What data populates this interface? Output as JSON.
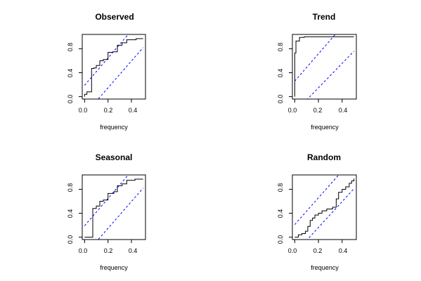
{
  "chart_data": [
    {
      "type": "line",
      "title": "Observed",
      "xlabel": "frequency",
      "ylabel": "",
      "xlim": [
        0,
        0.5
      ],
      "ylim": [
        0,
        1
      ],
      "xticks": [
        "0.0",
        "0.2",
        "0.4"
      ],
      "yticks": [
        "0.0",
        "0.4",
        "0.8"
      ],
      "grid": false,
      "series": [
        {
          "kind": "step",
          "color": "#000000",
          "points": [
            [
              0,
              0
            ],
            [
              0,
              0.04
            ],
            [
              0.02,
              0.04
            ],
            [
              0.02,
              0.08
            ],
            [
              0.06,
              0.08
            ],
            [
              0.06,
              0.47
            ],
            [
              0.08,
              0.47
            ],
            [
              0.08,
              0.48
            ],
            [
              0.1,
              0.48
            ],
            [
              0.1,
              0.52
            ],
            [
              0.13,
              0.52
            ],
            [
              0.13,
              0.6
            ],
            [
              0.16,
              0.6
            ],
            [
              0.16,
              0.62
            ],
            [
              0.2,
              0.62
            ],
            [
              0.2,
              0.74
            ],
            [
              0.24,
              0.74
            ],
            [
              0.24,
              0.75
            ],
            [
              0.28,
              0.75
            ],
            [
              0.28,
              0.86
            ],
            [
              0.32,
              0.86
            ],
            [
              0.32,
              0.9
            ],
            [
              0.36,
              0.9
            ],
            [
              0.36,
              0.95
            ],
            [
              0.44,
              0.95
            ],
            [
              0.44,
              0.97
            ],
            [
              0.5,
              0.97
            ]
          ]
        },
        {
          "kind": "line",
          "color": "#0000ff",
          "dash": true,
          "points": [
            [
              0,
              0.19
            ],
            [
              0.5,
              1.33
            ]
          ]
        },
        {
          "kind": "line",
          "color": "#0000ff",
          "dash": true,
          "points": [
            [
              0,
              -0.3
            ],
            [
              0.5,
              0.82
            ]
          ]
        }
      ]
    },
    {
      "type": "line",
      "title": "Trend",
      "xlabel": "frequency",
      "ylabel": "",
      "xlim": [
        0,
        0.5
      ],
      "ylim": [
        0,
        1
      ],
      "xticks": [
        "0.0",
        "0.2",
        "0.4"
      ],
      "yticks": [
        "0.0",
        "0.4",
        "0.8"
      ],
      "grid": false,
      "series": [
        {
          "kind": "step",
          "color": "#000000",
          "points": [
            [
              0,
              0
            ],
            [
              0,
              0.73
            ],
            [
              0.01,
              0.73
            ],
            [
              0.01,
              0.93
            ],
            [
              0.04,
              0.93
            ],
            [
              0.04,
              0.99
            ],
            [
              0.08,
              0.99
            ],
            [
              0.08,
              1.0
            ],
            [
              0.5,
              1.0
            ]
          ]
        },
        {
          "kind": "line",
          "color": "#0000ff",
          "dash": true,
          "points": [
            [
              0,
              0.26
            ],
            [
              0.5,
              1.4
            ]
          ]
        },
        {
          "kind": "line",
          "color": "#0000ff",
          "dash": true,
          "points": [
            [
              0,
              -0.26
            ],
            [
              0.5,
              0.76
            ]
          ]
        }
      ]
    },
    {
      "type": "line",
      "title": "Seasonal",
      "xlabel": "frequency",
      "ylabel": "",
      "xlim": [
        0,
        0.5
      ],
      "ylim": [
        0,
        1
      ],
      "xticks": [
        "0.0",
        "0.2",
        "0.4"
      ],
      "yticks": [
        "0.0",
        "0.4",
        "0.8"
      ],
      "grid": false,
      "series": [
        {
          "kind": "step",
          "color": "#000000",
          "points": [
            [
              0,
              0
            ],
            [
              0.07,
              0
            ],
            [
              0.07,
              0.48
            ],
            [
              0.1,
              0.48
            ],
            [
              0.1,
              0.52
            ],
            [
              0.13,
              0.52
            ],
            [
              0.13,
              0.6
            ],
            [
              0.16,
              0.6
            ],
            [
              0.16,
              0.62
            ],
            [
              0.2,
              0.62
            ],
            [
              0.2,
              0.73
            ],
            [
              0.25,
              0.73
            ],
            [
              0.25,
              0.76
            ],
            [
              0.28,
              0.76
            ],
            [
              0.28,
              0.86
            ],
            [
              0.32,
              0.86
            ],
            [
              0.32,
              0.89
            ],
            [
              0.36,
              0.89
            ],
            [
              0.36,
              0.95
            ],
            [
              0.43,
              0.95
            ],
            [
              0.43,
              0.97
            ],
            [
              0.5,
              0.97
            ]
          ]
        },
        {
          "kind": "line",
          "color": "#0000ff",
          "dash": true,
          "points": [
            [
              0,
              0.19
            ],
            [
              0.5,
              1.33
            ]
          ]
        },
        {
          "kind": "line",
          "color": "#0000ff",
          "dash": true,
          "points": [
            [
              0,
              -0.3
            ],
            [
              0.5,
              0.82
            ]
          ]
        }
      ]
    },
    {
      "type": "line",
      "title": "Random",
      "xlabel": "frequency",
      "ylabel": "",
      "xlim": [
        0,
        0.5
      ],
      "ylim": [
        0,
        1
      ],
      "xticks": [
        "0.0",
        "0.2",
        "0.4"
      ],
      "yticks": [
        "0.0",
        "0.4",
        "0.8"
      ],
      "grid": false,
      "series": [
        {
          "kind": "step",
          "color": "#000000",
          "points": [
            [
              0,
              0
            ],
            [
              0.03,
              0
            ],
            [
              0.03,
              0.04
            ],
            [
              0.06,
              0.04
            ],
            [
              0.06,
              0.06
            ],
            [
              0.09,
              0.06
            ],
            [
              0.09,
              0.1
            ],
            [
              0.11,
              0.1
            ],
            [
              0.11,
              0.18
            ],
            [
              0.13,
              0.18
            ],
            [
              0.13,
              0.28
            ],
            [
              0.15,
              0.28
            ],
            [
              0.15,
              0.32
            ],
            [
              0.17,
              0.32
            ],
            [
              0.17,
              0.37
            ],
            [
              0.2,
              0.37
            ],
            [
              0.2,
              0.4
            ],
            [
              0.23,
              0.4
            ],
            [
              0.23,
              0.44
            ],
            [
              0.27,
              0.44
            ],
            [
              0.27,
              0.47
            ],
            [
              0.32,
              0.47
            ],
            [
              0.32,
              0.5
            ],
            [
              0.35,
              0.5
            ],
            [
              0.35,
              0.64
            ],
            [
              0.37,
              0.64
            ],
            [
              0.37,
              0.75
            ],
            [
              0.4,
              0.75
            ],
            [
              0.4,
              0.8
            ],
            [
              0.43,
              0.8
            ],
            [
              0.43,
              0.84
            ],
            [
              0.46,
              0.84
            ],
            [
              0.46,
              0.9
            ],
            [
              0.48,
              0.9
            ],
            [
              0.48,
              0.94
            ],
            [
              0.5,
              0.94
            ],
            [
              0.5,
              0.98
            ]
          ]
        },
        {
          "kind": "line",
          "color": "#0000ff",
          "dash": true,
          "points": [
            [
              0,
              0.21
            ],
            [
              0.5,
              1.33
            ]
          ]
        },
        {
          "kind": "line",
          "color": "#0000ff",
          "dash": true,
          "points": [
            [
              0,
              -0.27
            ],
            [
              0.5,
              0.81
            ]
          ]
        }
      ]
    }
  ]
}
